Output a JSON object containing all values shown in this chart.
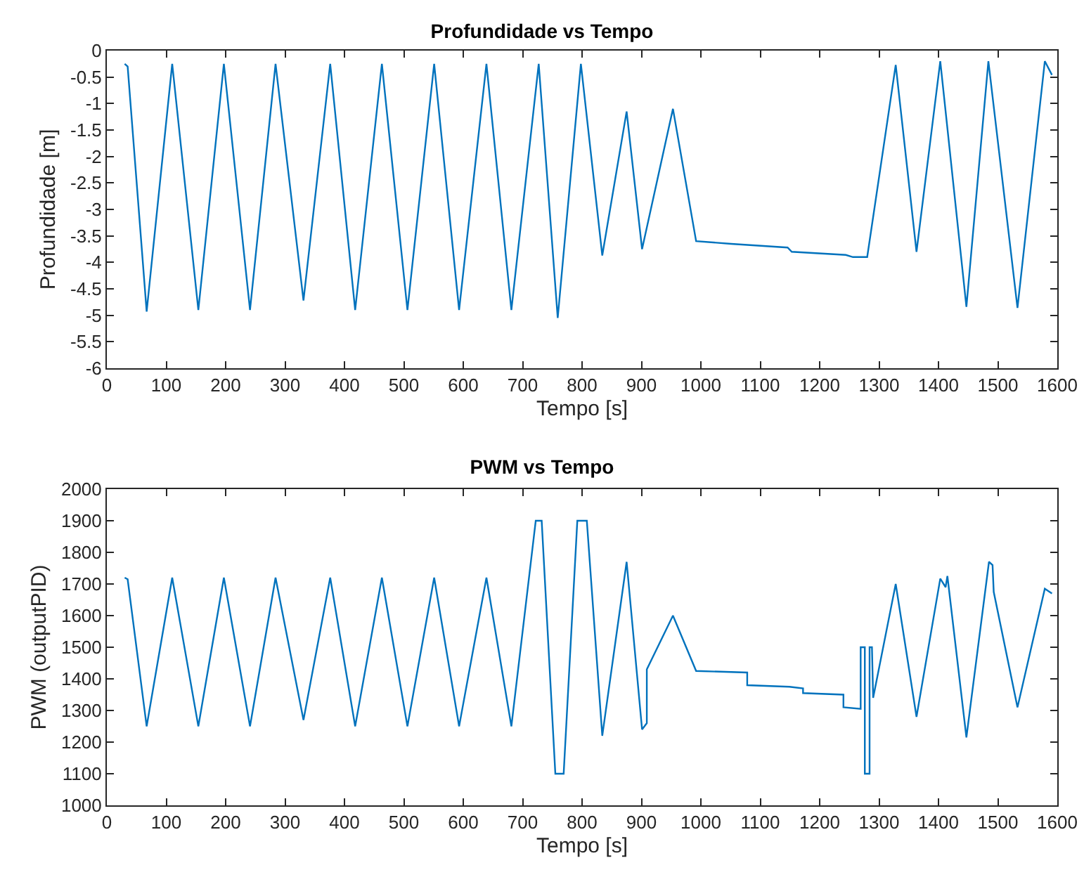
{
  "chart_data": [
    {
      "type": "line",
      "title": "Profundidade vs Tempo",
      "xlabel": "Tempo [s]",
      "ylabel": "Profundidade [m]",
      "xlim": [
        0,
        1600
      ],
      "xticks": [
        0,
        100,
        200,
        300,
        400,
        500,
        600,
        700,
        800,
        900,
        1000,
        1100,
        1200,
        1300,
        1400,
        1500,
        1600
      ],
      "ylim": [
        -6,
        0
      ],
      "yticks": [
        0,
        -0.5,
        -1,
        -1.5,
        -2,
        -2.5,
        -3,
        -3.5,
        -4,
        -4.5,
        -5,
        -5.5,
        -6
      ],
      "grid": false,
      "marker": "none",
      "line_style": "solid",
      "series": [
        {
          "color": "#0072bd",
          "x": [
            30,
            35,
            67,
            110,
            154,
            197,
            241,
            284,
            331,
            376,
            418,
            463,
            506,
            551,
            593,
            639,
            681,
            727,
            759,
            798,
            834,
            875,
            901,
            953,
            992,
            1051,
            1146,
            1153,
            1244,
            1256,
            1280,
            1328,
            1363,
            1403,
            1447,
            1484,
            1533,
            1579,
            1591
          ],
          "values": [
            -0.25,
            -0.3,
            -4.93,
            -0.25,
            -4.9,
            -0.25,
            -4.9,
            -0.25,
            -4.72,
            -0.25,
            -4.9,
            -0.25,
            -4.9,
            -0.25,
            -4.9,
            -0.25,
            -4.9,
            -0.25,
            -5.05,
            -0.25,
            -3.87,
            -1.15,
            -3.75,
            -1.1,
            -3.6,
            -3.65,
            -3.72,
            -3.8,
            -3.86,
            -3.9,
            -3.9,
            -0.27,
            -3.8,
            -0.2,
            -4.84,
            -0.2,
            -4.86,
            -0.2,
            -0.46
          ]
        }
      ]
    },
    {
      "type": "line",
      "title": "PWM vs Tempo",
      "xlabel": "Tempo [s]",
      "ylabel": "PWM (outputPID)",
      "xlim": [
        0,
        1600
      ],
      "xticks": [
        0,
        100,
        200,
        300,
        400,
        500,
        600,
        700,
        800,
        900,
        1000,
        1100,
        1200,
        1300,
        1400,
        1500,
        1600
      ],
      "ylim": [
        1000,
        2000
      ],
      "yticks": [
        1000,
        1100,
        1200,
        1300,
        1400,
        1500,
        1600,
        1700,
        1800,
        1900,
        2000
      ],
      "grid": false,
      "marker": "none",
      "line_style": "solid",
      "series": [
        {
          "color": "#0072bd",
          "x": [
            30,
            35,
            67,
            110,
            154,
            197,
            241,
            284,
            331,
            376,
            418,
            463,
            506,
            551,
            593,
            639,
            681,
            722,
            732,
            755,
            769,
            792,
            808,
            834,
            875,
            901,
            909,
            909,
            953,
            992,
            1078,
            1078,
            1149,
            1172,
            1172,
            1240,
            1240,
            1269,
            1269,
            1276,
            1276,
            1284,
            1284,
            1288,
            1290,
            1328,
            1363,
            1403,
            1412,
            1415,
            1447,
            1485,
            1491,
            1493,
            1533,
            1579,
            1591
          ],
          "values": [
            1720,
            1715,
            1250,
            1720,
            1250,
            1720,
            1250,
            1720,
            1270,
            1720,
            1250,
            1720,
            1250,
            1720,
            1250,
            1720,
            1250,
            1900,
            1900,
            1100,
            1100,
            1900,
            1900,
            1220,
            1770,
            1240,
            1260,
            1430,
            1600,
            1425,
            1420,
            1380,
            1375,
            1370,
            1355,
            1350,
            1310,
            1305,
            1500,
            1500,
            1100,
            1100,
            1500,
            1500,
            1340,
            1700,
            1280,
            1717,
            1690,
            1725,
            1215,
            1770,
            1760,
            1675,
            1310,
            1685,
            1670
          ]
        }
      ]
    }
  ]
}
